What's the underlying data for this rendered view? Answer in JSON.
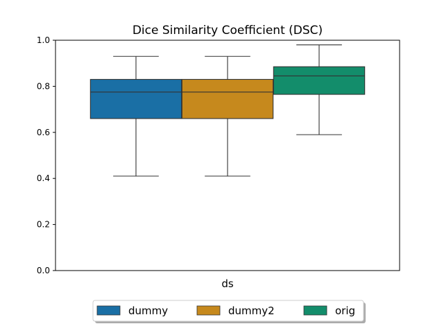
{
  "chart_data": {
    "type": "boxplot",
    "title": "Dice Similarity Coefficient (DSC)",
    "xlabel": "",
    "ylabel": "",
    "x_tick_labels": [
      "ds"
    ],
    "ylim": [
      0.0,
      1.0
    ],
    "y_ticks": [
      "0.0",
      "0.2",
      "0.4",
      "0.6",
      "0.8",
      "1.0"
    ],
    "grid": false,
    "legend_position": "bottom-center",
    "series": [
      {
        "name": "dummy",
        "color": "#1a6fa5",
        "whisker_low": 0.41,
        "q1": 0.66,
        "median": 0.775,
        "q3": 0.83,
        "whisker_high": 0.93
      },
      {
        "name": "dummy2",
        "color": "#c6891d",
        "whisker_low": 0.41,
        "q1": 0.66,
        "median": 0.775,
        "q3": 0.83,
        "whisker_high": 0.93
      },
      {
        "name": "orig",
        "color": "#138d6b",
        "whisker_low": 0.59,
        "q1": 0.765,
        "median": 0.845,
        "q3": 0.885,
        "whisker_high": 0.98
      }
    ]
  }
}
